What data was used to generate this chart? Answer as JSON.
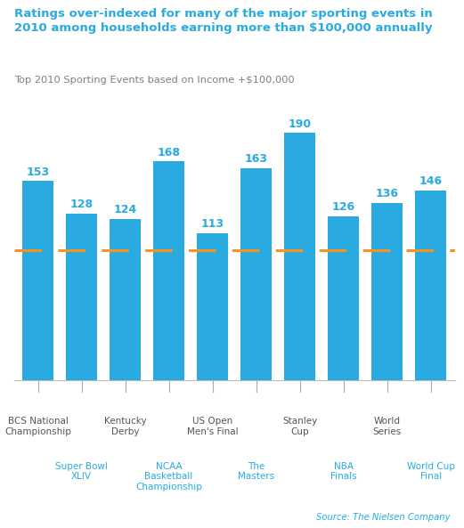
{
  "title_line1": "Ratings over-indexed for many of the major sporting events in",
  "title_line2": "2010 among households earning more than $100,000 annually",
  "subtitle": "Top 2010 Sporting Events based on Income +$100,000",
  "source": "Source: The Nielsen Company",
  "categories_odd": [
    "BCS National\nChampionship",
    "Kentucky\nDerby",
    "US Open\nMen's Final",
    "Stanley\nCup",
    "World\nSeries"
  ],
  "categories_even": [
    "Super Bowl\nXLIV",
    "NCAA\nBasketball\nChampionship",
    "The\nMasters",
    "NBA\nFinals",
    "World Cup\nFinal"
  ],
  "values": [
    153,
    128,
    124,
    168,
    113,
    163,
    190,
    126,
    136,
    146
  ],
  "bar_color": "#29ABE2",
  "dashed_line_y": 100,
  "dashed_line_color": "#F7941D",
  "title_color": "#29ABE2",
  "subtitle_color": "#7F7F7F",
  "label_color": "#29ABE2",
  "source_color": "#29ABE2",
  "label_odd_color": "#555555",
  "label_even_color": "#29ABE2",
  "background_color": "#ffffff",
  "ylim": [
    0,
    215
  ],
  "bar_width": 0.7
}
